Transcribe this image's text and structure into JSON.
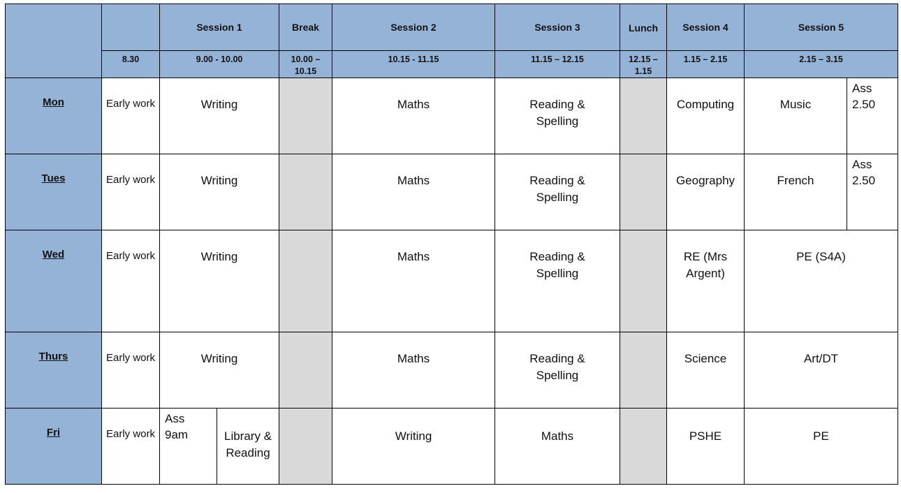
{
  "header": {
    "sessions": [
      "Session 1",
      "Break",
      "Session 2",
      "Session 3",
      "Lunch",
      "Session 4",
      "Session 5"
    ],
    "times": [
      "8.30",
      "9.00 - 10.00",
      "10.00 – 10.15",
      "10.15 - 11.15",
      "11.15 – 12.15",
      "12.15 – 1.15",
      "1.15 – 2.15",
      "2.15 – 3.15"
    ]
  },
  "colors": {
    "header": "#95b3d7",
    "break": "#d9d9d9"
  },
  "days": [
    {
      "name": "Mon",
      "early": "Early work",
      "s1": "Writing",
      "s2": "Maths",
      "s3": "Reading & Spelling",
      "s4": "Computing",
      "s5": "Music",
      "extra": "Ass 2.50"
    },
    {
      "name": "Tues",
      "early": "Early work",
      "s1": "Writing",
      "s2": "Maths",
      "s3": "Reading & Spelling",
      "s4": "Geography",
      "s5": "French",
      "extra": "Ass 2.50"
    },
    {
      "name": "Wed",
      "early": "Early work",
      "s1": "Writing",
      "s2": "Maths",
      "s3": "Reading & Spelling",
      "s4": "RE (Mrs Argent)",
      "s5": "PE (S4A)"
    },
    {
      "name": "Thurs",
      "early": "Early work",
      "s1": "Writing",
      "s2": "Maths",
      "s3": "Reading & Spelling",
      "s4": "Science",
      "s5": "Art/DT"
    },
    {
      "name": "Fri",
      "early": "Early work",
      "s1a": "Ass 9am",
      "s1b": "Library & Reading",
      "s2": "Writing",
      "s3": "Maths",
      "s4": "PSHE",
      "s5": "PE"
    }
  ]
}
